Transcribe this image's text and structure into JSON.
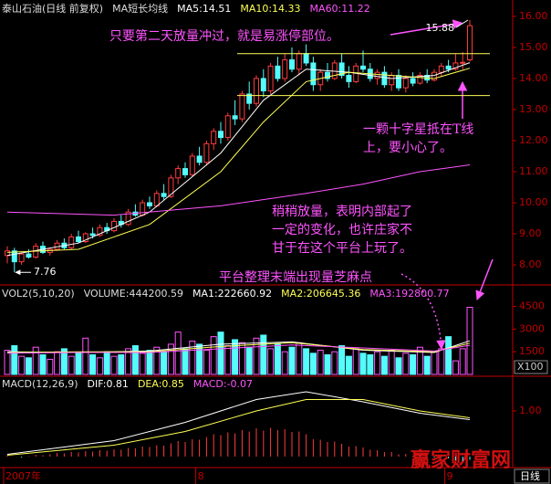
{
  "chart_data": [
    {
      "type": "candlestick",
      "title": "泰山石油(日线 前复权)",
      "subtitle": "MA短长均线",
      "categories": [
        "2007年",
        null,
        null,
        null,
        null,
        null,
        null,
        null,
        null,
        null,
        null,
        null,
        null,
        null,
        null,
        null,
        null,
        null,
        null,
        null,
        null,
        null,
        null,
        null,
        null,
        null,
        null,
        "8",
        null,
        null,
        null,
        null,
        null,
        null,
        null,
        null,
        null,
        null,
        null,
        null,
        null,
        null,
        null,
        null,
        null,
        null,
        null,
        null,
        null,
        null,
        null,
        null,
        null,
        null,
        null,
        null,
        null,
        null,
        null,
        null,
        null,
        null,
        "9",
        null,
        null,
        null
      ],
      "ohlc": [
        [
          8.3,
          8.6,
          8.05,
          8.45
        ],
        [
          8.45,
          8.55,
          7.76,
          8.1
        ],
        [
          8.1,
          8.4,
          8.0,
          8.35
        ],
        [
          8.35,
          8.5,
          8.2,
          8.25
        ],
        [
          8.25,
          8.7,
          8.2,
          8.6
        ],
        [
          8.6,
          8.75,
          8.35,
          8.4
        ],
        [
          8.4,
          8.55,
          8.3,
          8.5
        ],
        [
          8.5,
          8.8,
          8.45,
          8.7
        ],
        [
          8.7,
          8.85,
          8.5,
          8.55
        ],
        [
          8.55,
          9.0,
          8.5,
          8.9
        ],
        [
          8.9,
          9.1,
          8.7,
          8.75
        ],
        [
          8.75,
          9.05,
          8.7,
          9.0
        ],
        [
          9.0,
          9.2,
          8.85,
          8.95
        ],
        [
          8.95,
          9.3,
          8.9,
          9.2
        ],
        [
          9.2,
          9.35,
          9.0,
          9.1
        ],
        [
          9.1,
          9.5,
          9.05,
          9.4
        ],
        [
          9.4,
          9.6,
          9.2,
          9.3
        ],
        [
          9.3,
          9.8,
          9.25,
          9.7
        ],
        [
          9.7,
          9.95,
          9.55,
          9.6
        ],
        [
          9.6,
          10.1,
          9.55,
          10.0
        ],
        [
          10.0,
          10.2,
          9.8,
          9.9
        ],
        [
          9.9,
          10.4,
          9.85,
          10.3
        ],
        [
          10.3,
          10.6,
          10.1,
          10.2
        ],
        [
          10.2,
          10.9,
          10.15,
          10.8
        ],
        [
          10.8,
          11.2,
          10.6,
          11.1
        ],
        [
          11.1,
          11.3,
          10.8,
          10.9
        ],
        [
          10.9,
          11.6,
          10.85,
          11.5
        ],
        [
          11.5,
          11.8,
          11.2,
          11.3
        ],
        [
          11.3,
          12.0,
          11.2,
          11.9
        ],
        [
          11.9,
          12.4,
          11.7,
          12.3
        ],
        [
          12.3,
          12.6,
          11.9,
          12.1
        ],
        [
          12.1,
          12.9,
          12.0,
          12.8
        ],
        [
          12.8,
          13.3,
          12.5,
          12.7
        ],
        [
          12.7,
          13.6,
          12.6,
          13.5
        ],
        [
          13.5,
          13.9,
          13.0,
          13.2
        ],
        [
          13.2,
          14.1,
          13.1,
          14.0
        ],
        [
          14.0,
          14.3,
          13.4,
          13.6
        ],
        [
          13.6,
          14.5,
          13.5,
          14.4
        ],
        [
          14.4,
          14.7,
          13.9,
          14.0
        ],
        [
          14.0,
          14.8,
          13.9,
          14.6
        ],
        [
          14.6,
          15.0,
          14.2,
          14.3
        ],
        [
          14.3,
          14.9,
          14.1,
          14.8
        ],
        [
          14.8,
          15.1,
          14.4,
          14.5
        ],
        [
          14.5,
          14.7,
          13.6,
          13.8
        ],
        [
          13.8,
          14.3,
          13.6,
          14.2
        ],
        [
          14.2,
          14.5,
          13.9,
          14.0
        ],
        [
          14.0,
          14.6,
          13.95,
          14.5
        ],
        [
          14.5,
          14.8,
          14.0,
          14.1
        ],
        [
          14.1,
          14.4,
          13.7,
          13.9
        ],
        [
          13.9,
          14.5,
          13.85,
          14.4
        ],
        [
          14.4,
          14.9,
          14.2,
          14.3
        ],
        [
          14.3,
          14.5,
          13.9,
          14.0
        ],
        [
          14.0,
          14.3,
          13.8,
          14.2
        ],
        [
          14.2,
          14.4,
          13.7,
          13.8
        ],
        [
          13.8,
          14.2,
          13.6,
          14.1
        ],
        [
          14.1,
          14.3,
          13.6,
          13.7
        ],
        [
          13.7,
          14.1,
          13.55,
          14.0
        ],
        [
          14.0,
          14.2,
          13.75,
          13.85
        ],
        [
          13.85,
          14.2,
          13.8,
          14.1
        ],
        [
          14.1,
          14.3,
          13.85,
          13.95
        ],
        [
          13.95,
          14.3,
          13.9,
          14.2
        ],
        [
          14.2,
          14.5,
          14.05,
          14.4
        ],
        [
          14.4,
          14.6,
          14.2,
          14.3
        ],
        [
          14.3,
          14.8,
          14.25,
          14.5
        ],
        [
          14.5,
          14.85,
          14.3,
          14.52
        ],
        [
          14.6,
          15.88,
          14.55,
          15.7
        ]
      ],
      "up_color": "#ff3c3c",
      "down_color": "#54fcfc",
      "series": [
        {
          "name": "MA5:14.51",
          "color": "#ffffff",
          "x": [
            0,
            10,
            20,
            30,
            36,
            42,
            48,
            54,
            60,
            65
          ],
          "values": [
            8.3,
            8.7,
            9.7,
            11.6,
            13.3,
            14.3,
            14.2,
            14.0,
            14.1,
            14.51
          ]
        },
        {
          "name": "MA10:14.33",
          "color": "#ffff54",
          "x": [
            0,
            10,
            20,
            30,
            36,
            42,
            48,
            54,
            60,
            65
          ],
          "values": [
            8.4,
            8.5,
            9.3,
            11.0,
            12.6,
            13.9,
            14.2,
            14.1,
            14.0,
            14.33
          ]
        },
        {
          "name": "MA60:11.22",
          "color": "#ff54ff",
          "x": [
            0,
            15,
            30,
            42,
            50,
            58,
            65
          ],
          "values": [
            9.7,
            9.6,
            9.9,
            10.3,
            10.6,
            11.0,
            11.22
          ]
        }
      ],
      "ylim": [
        7.56,
        16.38
      ],
      "yticks": [
        {
          "value": 8,
          "label": "8.00"
        },
        {
          "value": 9,
          "label": "9.00"
        },
        {
          "value": 10,
          "label": "10.00"
        },
        {
          "value": 11,
          "label": "11.00"
        },
        {
          "value": 12,
          "label": "12.00"
        },
        {
          "value": 13,
          "label": "13.00"
        },
        {
          "value": 14,
          "label": "14.00"
        },
        {
          "value": 15,
          "label": "15.00"
        },
        {
          "value": 16,
          "label": "16.00"
        }
      ],
      "reference_lines": [
        14.8,
        13.45
      ],
      "reference_color": "#ffff54",
      "max_label": 15.88,
      "min_label": 7.76,
      "annotations": [
        [
          "只要第二天放量冲过，就是易涨停部位。"
        ],
        [
          "一颗十字星抵在T线",
          "上，要小心了。"
        ],
        [
          "稍稍放量，表明内部起了",
          "一定的变化，也许庄家不",
          "甘于在这个平台上玩了。"
        ],
        [
          "平台整理末端出现量芝麻点"
        ]
      ],
      "annotation_color": "#ff54ff"
    },
    {
      "type": "bar",
      "title": "VOL2(5,10,20)",
      "subtitle": "VOLUME:444200.59",
      "values": [
        1600,
        1900,
        1200,
        1100,
        1800,
        1300,
        1000,
        1500,
        1700,
        1200,
        1400,
        2400,
        1300,
        1100,
        1500,
        1200,
        1300,
        1700,
        1900,
        1400,
        1600,
        1800,
        1500,
        2000,
        2800,
        1700,
        2200,
        2000,
        1600,
        2500,
        2800,
        1900,
        2300,
        2100,
        1800,
        2400,
        2600,
        1700,
        2000,
        1500,
        1800,
        2100,
        1700,
        1400,
        1600,
        1300,
        1500,
        1900,
        1200,
        1700,
        1400,
        1300,
        1500,
        1200,
        1600,
        1100,
        1400,
        1300,
        1800,
        1200,
        1500,
        1700,
        2500,
        900,
        1700,
        4442
      ],
      "up_color": "#ff54ff",
      "down_color": "#54fcfc",
      "series": [
        {
          "name": "MA1:222660.92",
          "color": "#ffffff",
          "x": [
            0,
            10,
            20,
            30,
            40,
            50,
            60,
            65
          ],
          "values": [
            1500,
            1450,
            1550,
            2000,
            2150,
            1600,
            1450,
            2227
          ]
        },
        {
          "name": "MA2:206645.36",
          "color": "#ffff54",
          "x": [
            0,
            10,
            20,
            30,
            40,
            50,
            60,
            65
          ],
          "values": [
            1450,
            1500,
            1500,
            1850,
            2100,
            1650,
            1500,
            2066
          ]
        },
        {
          "name": "MA3:192800.77",
          "color": "#ff54ff",
          "x": [
            0,
            10,
            20,
            30,
            40,
            50,
            60,
            65
          ],
          "values": [
            1400,
            1450,
            1450,
            1700,
            1950,
            1750,
            1550,
            1928
          ]
        }
      ],
      "ylim": [
        0,
        5560
      ],
      "yticks": [
        1500,
        3000,
        4500
      ],
      "unit": "X100"
    },
    {
      "type": "macd",
      "title": "MACD(12,26,9)",
      "values": [
        0.02,
        0.0,
        -0.02,
        0.01,
        0.04,
        0.03,
        0.05,
        0.08,
        0.07,
        0.1,
        0.09,
        0.12,
        0.11,
        0.14,
        0.13,
        0.16,
        0.15,
        0.19,
        0.18,
        0.22,
        0.21,
        0.25,
        0.24,
        0.29,
        0.34,
        0.32,
        0.38,
        0.37,
        0.43,
        0.49,
        0.47,
        0.53,
        0.51,
        0.58,
        0.55,
        0.62,
        0.57,
        0.63,
        0.58,
        0.6,
        0.54,
        0.55,
        0.49,
        0.38,
        0.37,
        0.32,
        0.33,
        0.28,
        0.22,
        0.23,
        0.2,
        0.15,
        0.14,
        0.1,
        0.1,
        0.05,
        0.06,
        0.02,
        0.03,
        0.0,
        -0.02,
        -0.01,
        -0.04,
        -0.08,
        -0.1,
        -0.07
      ],
      "up_color": "#ff3c3c",
      "down_color": "#54fcfc",
      "series": [
        {
          "name": "DIF:0.81",
          "color": "#ffffff",
          "x": [
            0,
            15,
            25,
            35,
            42,
            50,
            58,
            65
          ],
          "values": [
            0.05,
            0.35,
            0.75,
            1.25,
            1.42,
            1.2,
            0.95,
            0.81
          ]
        },
        {
          "name": "DEA:0.85",
          "color": "#ffff54",
          "x": [
            0,
            15,
            25,
            35,
            42,
            50,
            58,
            65
          ],
          "values": [
            0.03,
            0.25,
            0.55,
            1.0,
            1.25,
            1.25,
            1.0,
            0.85
          ]
        }
      ],
      "histogram_label": "MACD:-0.07",
      "histogram_label_color": "#ff54ff",
      "ylim": [
        -0.24,
        1.64
      ],
      "yticks": [
        {
          "value": 1,
          "label": "1.00"
        }
      ]
    }
  ],
  "footer": {
    "period": "日线",
    "watermark": "赢家财富网"
  }
}
